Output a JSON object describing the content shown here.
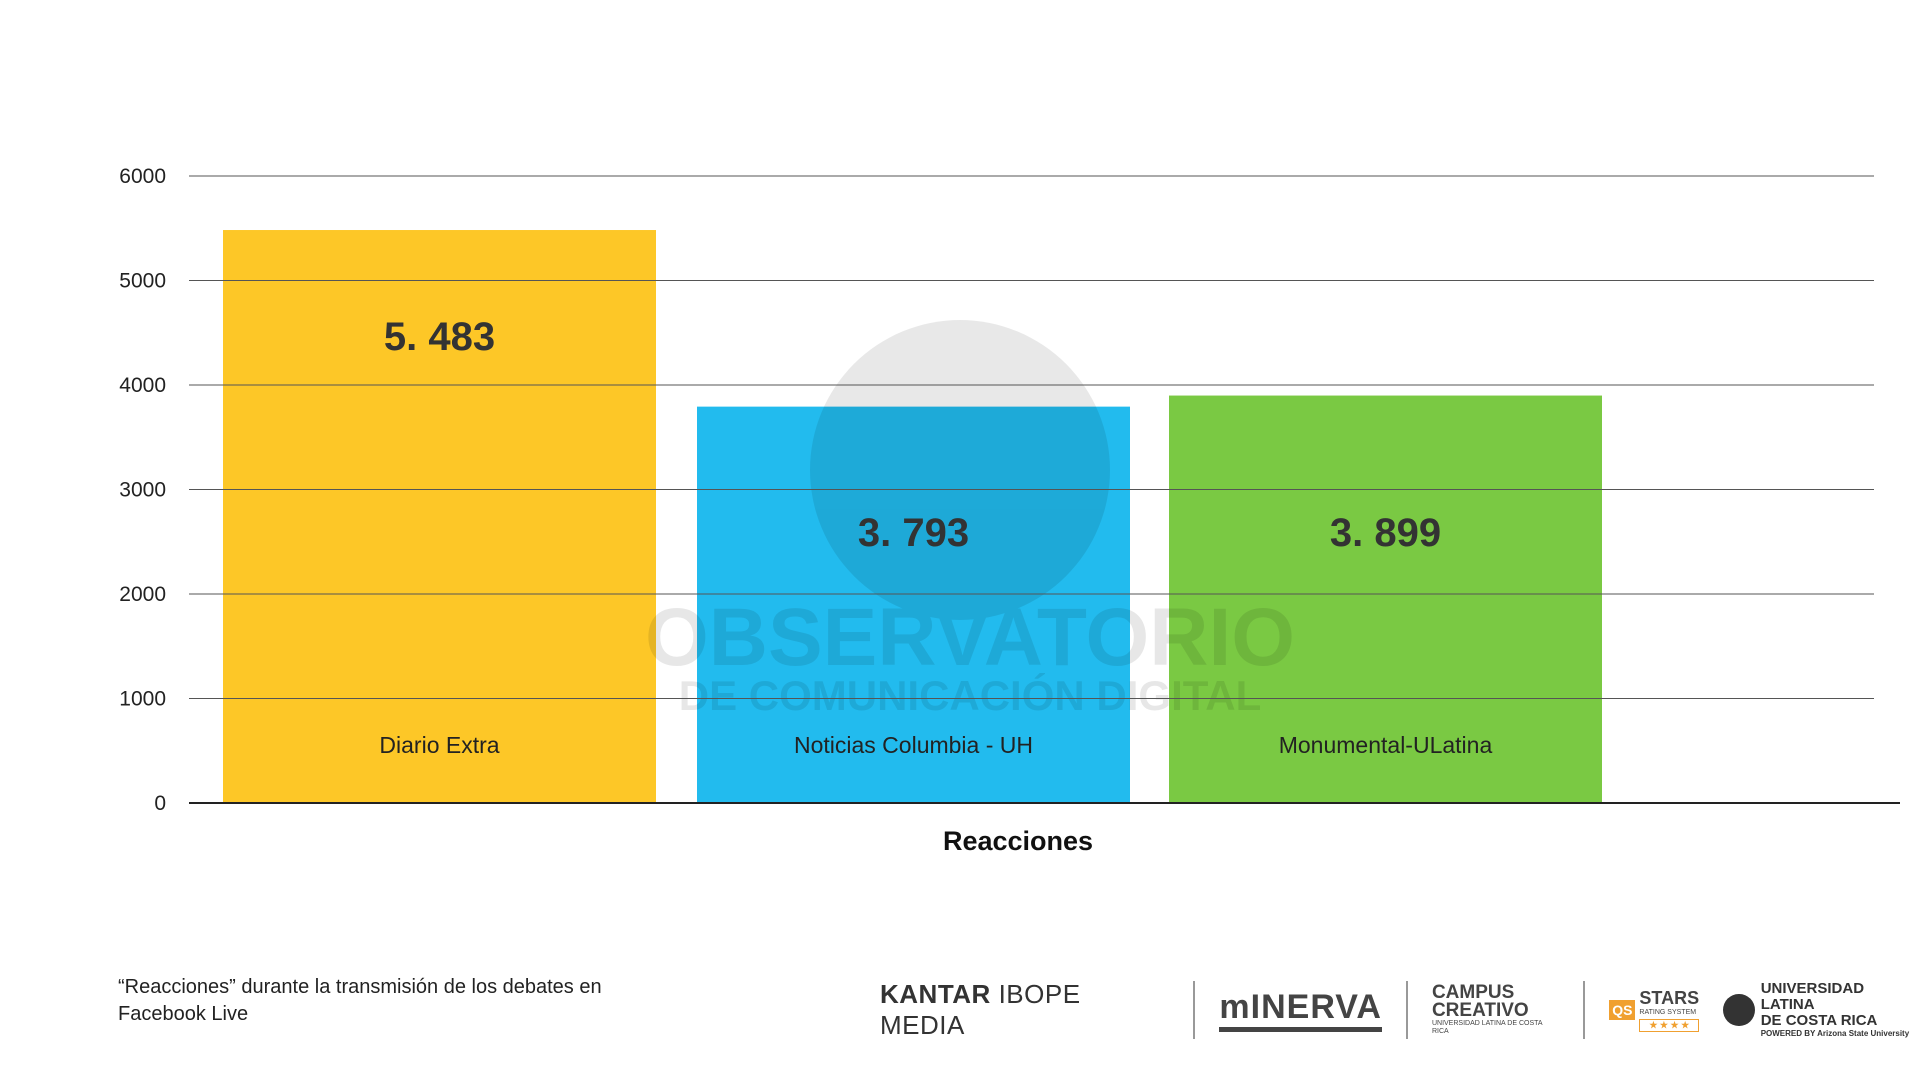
{
  "chart_data": {
    "type": "bar",
    "categories": [
      "Diario Extra",
      "Noticias Columbia - UH",
      "Monumental-ULatina"
    ],
    "values": [
      5483,
      3793,
      3899
    ],
    "value_labels": [
      "5. 483",
      "3. 793",
      "3. 899"
    ],
    "colors": [
      "#FDC727",
      "#22BBEE",
      "#7AC943"
    ],
    "xlabel": "Reacciones",
    "ylabel": "",
    "ylim": [
      0,
      6000
    ],
    "yticks": [
      0,
      1000,
      2000,
      3000,
      4000,
      5000,
      6000
    ],
    "grid": true,
    "legend": "none"
  },
  "watermark": {
    "line1": "OBSERVATORIO",
    "line2": "DE COMUNICACIÓN DIGITAL"
  },
  "footnote": "“Reacciones” durante la transmisión de los debates en Facebook Live",
  "logos": {
    "kantar_bold": "KANTAR",
    "kantar_rest": "IBOPE MEDIA",
    "minerva": "mINERVA",
    "campus": "CAMPUS",
    "creativo": "CREATIVO",
    "campus_sub": "UNIVERSIDAD LATINA DE COSTA RICA",
    "qs": "QS",
    "stars": "STARS",
    "rating": "RATING SYSTEM",
    "stars_row": "★ ★ ★ ★",
    "ulatina1": "UNIVERSIDAD LATINA",
    "ulatina2": "DE COSTA RICA",
    "ulatina_sub": "POWERED BY Arizona State University"
  }
}
